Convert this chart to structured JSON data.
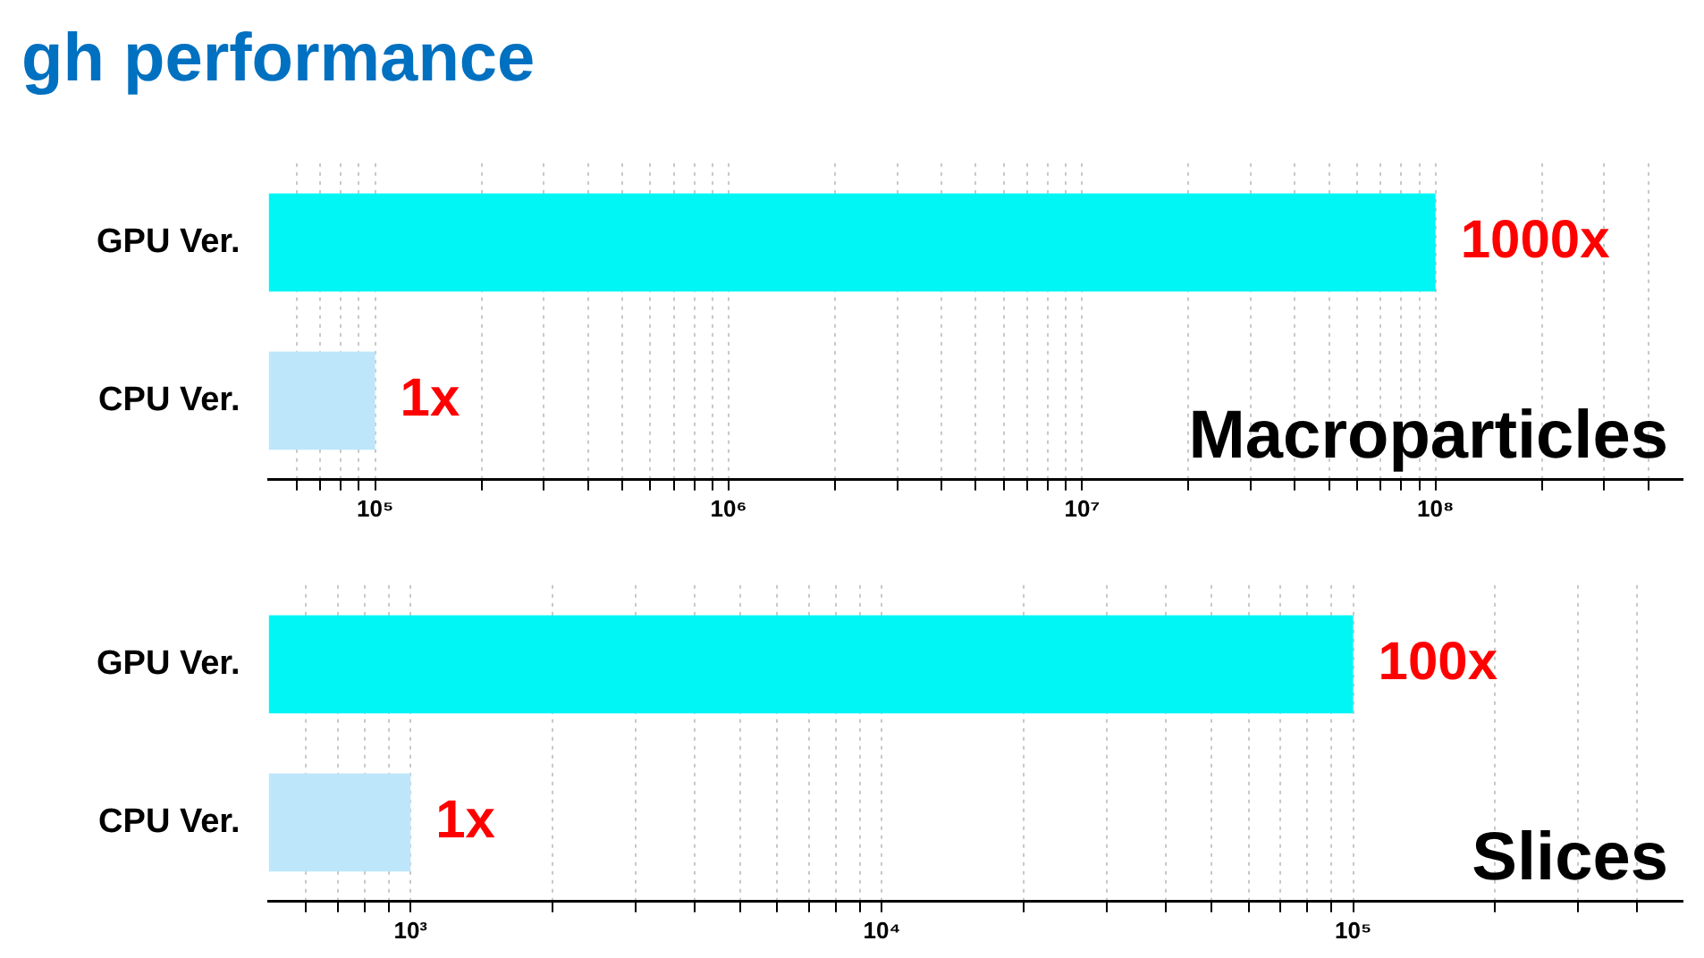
{
  "chart_data": [
    {
      "type": "bar",
      "title": "gh performance",
      "orientation": "horizontal",
      "log": "x",
      "grid": "x",
      "legend": false,
      "categories": [
        "GPU Ver.",
        "CPU Ver."
      ],
      "values": [
        100000000,
        100000
      ],
      "colors": [
        "#00f5f5",
        "#bde6fb"
      ],
      "annotations": [
        {
          "text": "1000x",
          "x": 100000000,
          "y": "GPU Ver."
        },
        {
          "text": "1x",
          "x": 100000,
          "y": "CPU Ver."
        },
        "Macroparticles"
      ],
      "xlim": [
        50000,
        500000000
      ],
      "xticks": [
        {
          "value": 60000,
          "label": null
        },
        {
          "value": 70000,
          "label": null
        },
        {
          "value": 80000,
          "label": null
        },
        {
          "value": 90000,
          "label": null
        },
        {
          "value": 100000,
          "label": "10⁵"
        },
        {
          "value": 200000,
          "label": null
        },
        {
          "value": 300000,
          "label": null
        },
        {
          "value": 400000,
          "label": null
        },
        {
          "value": 500000,
          "label": null
        },
        {
          "value": 600000,
          "label": null
        },
        {
          "value": 700000,
          "label": null
        },
        {
          "value": 800000,
          "label": null
        },
        {
          "value": 900000,
          "label": null
        },
        {
          "value": 1000000,
          "label": "10⁶"
        },
        {
          "value": 2000000,
          "label": null
        },
        {
          "value": 3000000,
          "label": null
        },
        {
          "value": 4000000,
          "label": null
        },
        {
          "value": 5000000,
          "label": null
        },
        {
          "value": 6000000,
          "label": null
        },
        {
          "value": 7000000,
          "label": null
        },
        {
          "value": 8000000,
          "label": null
        },
        {
          "value": 9000000,
          "label": null
        },
        {
          "value": 10000000,
          "label": "10⁷"
        },
        {
          "value": 20000000,
          "label": null
        },
        {
          "value": 30000000,
          "label": null
        },
        {
          "value": 40000000,
          "label": null
        },
        {
          "value": 50000000,
          "label": null
        },
        {
          "value": 60000000,
          "label": null
        },
        {
          "value": 70000000,
          "label": null
        },
        {
          "value": 80000000,
          "label": null
        },
        {
          "value": 90000000,
          "label": null
        },
        {
          "value": 100000000,
          "label": "10⁸"
        },
        {
          "value": 200000000,
          "label": null
        },
        {
          "value": 300000000,
          "label": null
        },
        {
          "value": 400000000,
          "label": null
        }
      ]
    },
    {
      "type": "bar",
      "orientation": "horizontal",
      "log": "x",
      "grid": "x",
      "legend": false,
      "categories": [
        "GPU Ver.",
        "CPU Ver."
      ],
      "values": [
        100000,
        1000
      ],
      "colors": [
        "#00f5f5",
        "#bde6fb"
      ],
      "annotations": [
        {
          "text": "100x",
          "x": 100000,
          "y": "GPU Ver."
        },
        {
          "text": "1x",
          "x": 1000,
          "y": "CPU Ver."
        },
        "Slices"
      ],
      "xlim": [
        500,
        500000
      ],
      "xticks": [
        {
          "value": 600,
          "label": null
        },
        {
          "value": 700,
          "label": null
        },
        {
          "value": 800,
          "label": null
        },
        {
          "value": 900,
          "label": null
        },
        {
          "value": 1000,
          "label": "10³"
        },
        {
          "value": 2000,
          "label": null
        },
        {
          "value": 3000,
          "label": null
        },
        {
          "value": 4000,
          "label": null
        },
        {
          "value": 5000,
          "label": null
        },
        {
          "value": 6000,
          "label": null
        },
        {
          "value": 7000,
          "label": null
        },
        {
          "value": 8000,
          "label": null
        },
        {
          "value": 9000,
          "label": null
        },
        {
          "value": 10000,
          "label": "10⁴"
        },
        {
          "value": 20000,
          "label": null
        },
        {
          "value": 30000,
          "label": null
        },
        {
          "value": 40000,
          "label": null
        },
        {
          "value": 50000,
          "label": null
        },
        {
          "value": 60000,
          "label": null
        },
        {
          "value": 70000,
          "label": null
        },
        {
          "value": 80000,
          "label": null
        },
        {
          "value": 90000,
          "label": null
        },
        {
          "value": 100000,
          "label": "10⁵"
        },
        {
          "value": 200000,
          "label": null
        },
        {
          "value": 300000,
          "label": null
        },
        {
          "value": 400000,
          "label": null
        }
      ]
    }
  ]
}
